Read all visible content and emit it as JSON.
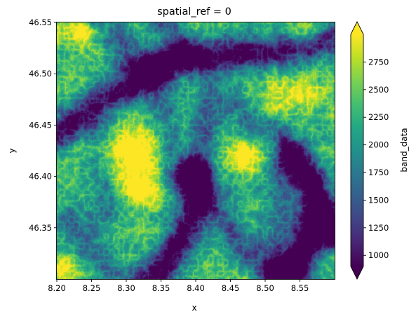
{
  "chart_data": {
    "type": "heatmap",
    "title": "spatial_ref = 0",
    "xlabel": "x",
    "ylabel": "y",
    "xlim": [
      8.2,
      8.6
    ],
    "ylim": [
      46.3,
      46.55
    ],
    "xticks": [
      "8.20",
      "8.25",
      "8.30",
      "8.35",
      "8.40",
      "8.45",
      "8.50",
      "8.55"
    ],
    "yticks": [
      "46.35",
      "46.40",
      "46.45",
      "46.50",
      "46.55"
    ],
    "colorbar": {
      "label": "band_data",
      "range": [
        900,
        3000
      ],
      "ticks": [
        "1000",
        "1250",
        "1500",
        "1750",
        "2000",
        "2250",
        "2500",
        "2750"
      ],
      "extend": "both",
      "colormap": "viridis"
    },
    "features": [
      {
        "kind": "valley",
        "points": [
          [
            8.2,
            46.44
          ],
          [
            8.26,
            46.47
          ],
          [
            8.32,
            46.495
          ],
          [
            8.38,
            46.515
          ],
          [
            8.45,
            46.518
          ],
          [
            8.52,
            46.522
          ],
          [
            8.6,
            46.535
          ]
        ],
        "depth": 1500
      },
      {
        "kind": "valley",
        "points": [
          [
            8.26,
            46.555
          ],
          [
            8.29,
            46.53
          ],
          [
            8.32,
            46.505
          ]
        ],
        "depth": 900
      },
      {
        "kind": "valley",
        "points": [
          [
            8.35,
            46.555
          ],
          [
            8.37,
            46.535
          ],
          [
            8.39,
            46.517
          ]
        ],
        "depth": 800
      },
      {
        "kind": "valley",
        "points": [
          [
            8.34,
            46.51
          ],
          [
            8.35,
            46.47
          ],
          [
            8.36,
            46.43
          ],
          [
            8.37,
            46.4
          ]
        ],
        "depth": 700
      },
      {
        "kind": "valley",
        "points": [
          [
            8.42,
            46.48
          ],
          [
            8.41,
            46.44
          ],
          [
            8.4,
            46.4
          ]
        ],
        "depth": 700
      },
      {
        "kind": "valley",
        "points": [
          [
            8.4,
            46.4
          ],
          [
            8.4,
            46.37
          ],
          [
            8.38,
            46.34
          ],
          [
            8.35,
            46.31
          ],
          [
            8.33,
            46.298
          ]
        ],
        "depth": 1600
      },
      {
        "kind": "valley",
        "points": [
          [
            8.4,
            46.4
          ],
          [
            8.43,
            46.37
          ],
          [
            8.46,
            46.335
          ],
          [
            8.5,
            46.315
          ],
          [
            8.54,
            46.3
          ]
        ],
        "depth": 900
      },
      {
        "kind": "valley",
        "points": [
          [
            8.54,
            46.42
          ],
          [
            8.57,
            46.39
          ],
          [
            8.58,
            46.36
          ],
          [
            8.56,
            46.33
          ],
          [
            8.54,
            46.31
          ],
          [
            8.52,
            46.3
          ]
        ],
        "depth": 1900
      },
      {
        "kind": "valley",
        "points": [
          [
            8.58,
            46.36
          ],
          [
            8.6,
            46.345
          ]
        ],
        "depth": 1700
      },
      {
        "kind": "valley",
        "points": [
          [
            8.52,
            46.4
          ],
          [
            8.53,
            46.36
          ],
          [
            8.52,
            46.33
          ]
        ],
        "depth": 700
      },
      {
        "kind": "valley",
        "points": [
          [
            8.22,
            46.36
          ],
          [
            8.25,
            46.33
          ],
          [
            8.28,
            46.305
          ]
        ],
        "depth": 700
      },
      {
        "kind": "valley",
        "points": [
          [
            8.46,
            46.47
          ],
          [
            8.49,
            46.45
          ],
          [
            8.52,
            46.44
          ]
        ],
        "depth": 600
      },
      {
        "kind": "valley",
        "points": [
          [
            8.27,
            46.44
          ],
          [
            8.26,
            46.4
          ],
          [
            8.27,
            46.37
          ]
        ],
        "depth": 550
      },
      {
        "kind": "peak",
        "center": [
          8.31,
          46.425
        ],
        "height": 1200,
        "radius": [
          0.045,
          0.03
        ]
      },
      {
        "kind": "peak",
        "center": [
          8.32,
          46.385
        ],
        "height": 900,
        "radius": [
          0.025,
          0.015
        ]
      },
      {
        "kind": "peak",
        "center": [
          8.47,
          46.42
        ],
        "height": 1000,
        "radius": [
          0.025,
          0.015
        ]
      },
      {
        "kind": "peak",
        "center": [
          8.24,
          46.54
        ],
        "height": 900,
        "radius": [
          0.04,
          0.012
        ]
      },
      {
        "kind": "peak",
        "center": [
          8.56,
          46.54
        ],
        "height": 800,
        "radius": [
          0.03,
          0.012
        ]
      },
      {
        "kind": "peak",
        "center": [
          8.21,
          46.31
        ],
        "height": 800,
        "radius": [
          0.02,
          0.012
        ]
      },
      {
        "kind": "peak",
        "center": [
          8.54,
          46.48
        ],
        "height": 600,
        "radius": [
          0.05,
          0.02
        ]
      }
    ]
  }
}
